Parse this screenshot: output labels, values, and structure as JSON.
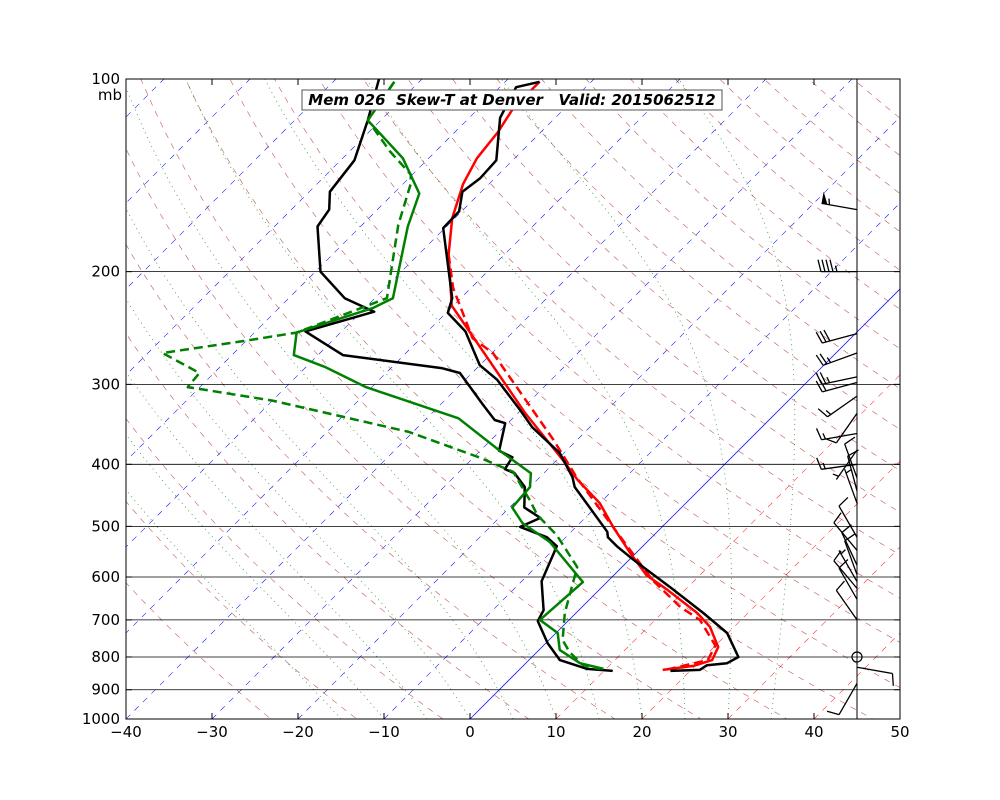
{
  "chart_data": {
    "type": "line",
    "title": "Mem 026  Skew-T at Denver   Valid: 2015062512",
    "xlabel": "",
    "ylabel": "mb",
    "xlim": [
      -40,
      50
    ],
    "ylim": [
      1000,
      100
    ],
    "skew_deg_per_decade_note": "skewed isotherms at 45 degrees",
    "xticks": [
      -40,
      -30,
      -20,
      -10,
      0,
      10,
      20,
      30,
      40,
      50
    ],
    "xtick_labels": [
      "−40",
      "−30",
      "−20",
      "−10",
      "0",
      "10",
      "20",
      "30",
      "40",
      "50"
    ],
    "yticks": [
      100,
      200,
      300,
      400,
      500,
      600,
      700,
      800,
      900,
      1000
    ],
    "ytick_labels": [
      "100",
      "200",
      "300",
      "400",
      "500",
      "600",
      "700",
      "800",
      "900",
      "1000"
    ],
    "grid_pressures": [
      200,
      300,
      400,
      500,
      600,
      700,
      800,
      900
    ],
    "background": {
      "isotherm_step": 10,
      "isotherm_cold_color": "#0000ff",
      "isotherm_warm_color": "#ff0000",
      "dry_adiabat_theta_K": [
        250,
        260,
        270,
        280,
        290,
        300,
        310,
        320,
        330,
        340,
        350,
        360,
        370,
        380,
        390,
        400,
        410,
        420,
        430,
        440,
        450,
        460,
        470
      ],
      "dry_adiabat_color": "#b03030",
      "moist_adiabat_start_T_1000mb": [
        -15,
        -10,
        -5,
        0,
        5,
        10,
        15,
        20,
        25,
        30,
        35
      ],
      "moist_adiabat_color": "#008000"
    },
    "series": [
      {
        "name": "temperature",
        "color": "#ff0000",
        "dash": false,
        "points": [
          [
            -66.0,
            101
          ],
          [
            -66.0,
            111
          ],
          [
            -65.0,
            121
          ],
          [
            -64.4,
            133
          ],
          [
            -63.0,
            146
          ],
          [
            -60.3,
            165
          ],
          [
            -56.5,
            188
          ],
          [
            -50.2,
            226
          ],
          [
            -29.1,
            333
          ],
          [
            -19.3,
            394
          ],
          [
            -15.3,
            423
          ],
          [
            -10.0,
            460
          ],
          [
            -5.7,
            501
          ],
          [
            -0.7,
            550
          ],
          [
            3.8,
            596
          ],
          [
            7.9,
            628
          ],
          [
            14.1,
            683
          ],
          [
            17.2,
            718
          ],
          [
            20.5,
            772
          ],
          [
            21.3,
            809
          ],
          [
            19.8,
            826
          ],
          [
            16.7,
            838
          ]
        ]
      },
      {
        "name": "temperature-dashed",
        "color": "#ff0000",
        "dash": true,
        "points": [
          [
            -56.5,
            188
          ],
          [
            -52.1,
            212
          ],
          [
            -44.0,
            254
          ],
          [
            -39.9,
            268
          ],
          [
            -22.8,
            366
          ],
          [
            -15.6,
            420
          ],
          [
            -4.5,
            512
          ],
          [
            5.1,
            607
          ],
          [
            11.4,
            668
          ],
          [
            15.2,
            700
          ],
          [
            20.0,
            768
          ],
          [
            20.8,
            809
          ],
          [
            17.0,
            838
          ]
        ]
      },
      {
        "name": "temperature-member",
        "color": "#000000",
        "dash": false,
        "points": [
          [
            -66.0,
            101
          ],
          [
            -68.1,
            103
          ],
          [
            -66.4,
            115
          ],
          [
            -61.9,
            134
          ],
          [
            -61.7,
            143
          ],
          [
            -62.2,
            150
          ],
          [
            -60.3,
            161
          ],
          [
            -60.2,
            171
          ],
          [
            -51.0,
            220
          ],
          [
            -49.8,
            232
          ],
          [
            -45.6,
            248
          ],
          [
            -40.0,
            280
          ],
          [
            -36.3,
            295
          ],
          [
            -30.1,
            329
          ],
          [
            -26.7,
            350
          ],
          [
            -20.5,
            384
          ],
          [
            -16.2,
            419
          ],
          [
            -14.8,
            434
          ],
          [
            -10.7,
            467
          ],
          [
            -5.8,
            510
          ],
          [
            -5.1,
            520
          ],
          [
            -2.9,
            538
          ],
          [
            0.5,
            564
          ],
          [
            7.9,
            622
          ],
          [
            14.8,
            683
          ],
          [
            19.9,
            734
          ],
          [
            24.0,
            800
          ],
          [
            23.4,
            818
          ],
          [
            21.3,
            824
          ],
          [
            21.0,
            838
          ],
          [
            17.7,
            841
          ]
        ]
      },
      {
        "name": "dewpoint-member",
        "color": "#000000",
        "dash": false,
        "points": [
          [
            -85.0,
            100
          ],
          [
            -81.5,
            116
          ],
          [
            -78.4,
            134
          ],
          [
            -77.6,
            150
          ],
          [
            -75.6,
            160
          ],
          [
            -75.0,
            170
          ],
          [
            -69.4,
            200
          ],
          [
            -63.5,
            220
          ],
          [
            -58.5,
            231
          ],
          [
            -64.2,
            248
          ],
          [
            -57.1,
            270
          ],
          [
            -44.1,
            283
          ],
          [
            -41.4,
            288
          ],
          [
            -35.0,
            323
          ],
          [
            -31.9,
            341
          ],
          [
            -30.3,
            345
          ],
          [
            -27.8,
            381
          ],
          [
            -25.5,
            390
          ],
          [
            -25.0,
            407
          ],
          [
            -23.4,
            413
          ],
          [
            -20.6,
            434
          ],
          [
            -18.3,
            467
          ],
          [
            -15.2,
            485
          ],
          [
            -16.5,
            501
          ],
          [
            -12.2,
            520
          ],
          [
            -10.0,
            537
          ],
          [
            -7.7,
            609
          ],
          [
            -4.1,
            676
          ],
          [
            -3.5,
            703
          ],
          [
            0.2,
            761
          ],
          [
            3.6,
            809
          ],
          [
            7.8,
            835
          ],
          [
            11.0,
            841
          ]
        ]
      },
      {
        "name": "dewpoint",
        "color": "#008000",
        "dash": false,
        "points": [
          [
            -82.9,
            101
          ],
          [
            -81.5,
            116
          ],
          [
            -73.0,
            133
          ],
          [
            -67.0,
            151
          ],
          [
            -64.5,
            170
          ],
          [
            -57.9,
            220
          ],
          [
            -59.1,
            228
          ],
          [
            -65.1,
            249
          ],
          [
            -62.8,
            270
          ],
          [
            -57.7,
            282
          ],
          [
            -50.7,
            303
          ],
          [
            -36.3,
            339
          ],
          [
            -27.9,
            380
          ],
          [
            -21.5,
            413
          ],
          [
            -20.0,
            434
          ],
          [
            -19.7,
            467
          ],
          [
            -16.7,
            494
          ],
          [
            -11.3,
            529
          ],
          [
            -2.8,
            611
          ],
          [
            -3.4,
            700
          ],
          [
            0.2,
            734
          ],
          [
            2.4,
            780
          ],
          [
            6.3,
            818
          ],
          [
            9.7,
            835
          ]
        ]
      },
      {
        "name": "dewpoint-dashed",
        "color": "#008000",
        "dash": true,
        "points": [
          [
            -82.9,
            101
          ],
          [
            -81.5,
            116
          ],
          [
            -75.2,
            130
          ],
          [
            -70.2,
            141
          ],
          [
            -69.1,
            146
          ],
          [
            -65.8,
            169
          ],
          [
            -58.6,
            220
          ],
          [
            -65.1,
            249
          ],
          [
            -69.8,
            256
          ],
          [
            -78.3,
            268
          ],
          [
            -71.7,
            288
          ],
          [
            -71.4,
            303
          ],
          [
            -60.0,
            318
          ],
          [
            -40.5,
            356
          ],
          [
            -29.4,
            390
          ],
          [
            -23.7,
            411
          ],
          [
            -20.0,
            442
          ],
          [
            -18.5,
            455
          ],
          [
            -15.9,
            480
          ],
          [
            -11.3,
            516
          ],
          [
            -5.2,
            579
          ],
          [
            -1.3,
            683
          ],
          [
            1.6,
            753
          ],
          [
            3.8,
            786
          ],
          [
            6.9,
            824
          ],
          [
            9.3,
            835
          ]
        ]
      }
    ],
    "wind_barbs": [
      {
        "p": 160,
        "dir": 280,
        "speed": 55
      },
      {
        "p": 200,
        "dir": 270,
        "speed": 45
      },
      {
        "p": 250,
        "dir": 255,
        "speed": 30
      },
      {
        "p": 268,
        "dir": 250,
        "speed": 25
      },
      {
        "p": 292,
        "dir": 258,
        "speed": 25
      },
      {
        "p": 298,
        "dir": 255,
        "speed": 20
      },
      {
        "p": 313,
        "dir": 235,
        "speed": 15
      },
      {
        "p": 333,
        "dir": 215,
        "speed": 10
      },
      {
        "p": 358,
        "dir": 260,
        "speed": 15
      },
      {
        "p": 380,
        "dir": 215,
        "speed": 5
      },
      {
        "p": 400,
        "dir": 262,
        "speed": 15
      },
      {
        "p": 420,
        "dir": 340,
        "speed": 10
      },
      {
        "p": 440,
        "dir": 345,
        "speed": 10
      },
      {
        "p": 460,
        "dir": 340,
        "speed": 5
      },
      {
        "p": 520,
        "dir": 330,
        "speed": 10
      },
      {
        "p": 545,
        "dir": 320,
        "speed": 10
      },
      {
        "p": 575,
        "dir": 335,
        "speed": 10
      },
      {
        "p": 595,
        "dir": 340,
        "speed": 10
      },
      {
        "p": 610,
        "dir": 330,
        "speed": 5
      },
      {
        "p": 625,
        "dir": 320,
        "speed": 10
      },
      {
        "p": 650,
        "dir": 330,
        "speed": 10
      },
      {
        "p": 700,
        "dir": 325,
        "speed": 10
      },
      {
        "p": 800,
        "dir": 0,
        "speed": 0
      },
      {
        "p": 830,
        "dir": 100,
        "speed": 10
      },
      {
        "p": 880,
        "dir": 210,
        "speed": 10
      }
    ]
  }
}
